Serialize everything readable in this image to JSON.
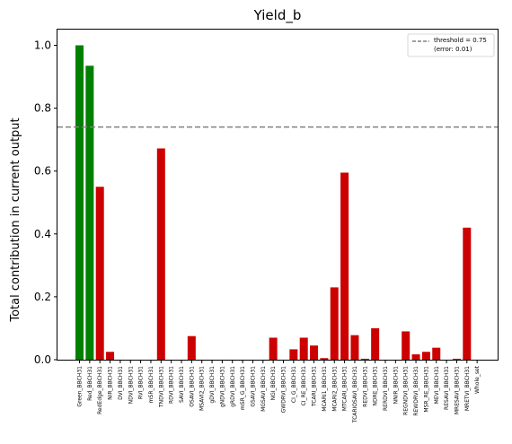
{
  "chart_data": {
    "type": "bar",
    "title": "Yield_b",
    "xlabel": "",
    "ylabel": "Total contribution in current output",
    "ylim": [
      0,
      1.05
    ],
    "yticks": [
      "0.0",
      "0.2",
      "0.4",
      "0.6",
      "0.8",
      "1.0"
    ],
    "threshold": {
      "value": 0.74,
      "legend_line1": "threshold = 0.75",
      "legend_line2": "(error: 0.01)",
      "color": "#808080"
    },
    "legend_placement": "top-right",
    "colors": {
      "above": "#008000",
      "below": "#cc0000"
    },
    "categories": [
      "Green_BBCH31",
      "Red_BBCH31",
      "RedEdge_BBCH31",
      "NIR_BBCH31",
      "DVI_BBCH31",
      "NDVI_BBCH31",
      "RVI_BBCH31",
      "mSR_BBCH31",
      "TNDVI_BBCH31",
      "RDVI_BBCH31",
      "SAVI_BBCH31",
      "OSAVI_BBCH31",
      "MSAVI2_BBCH31",
      "gDVI_BBCH31",
      "gNDVI_BBCH31",
      "gRDVI_BBCH31",
      "mSR_G_BBCH31",
      "GSAVI_BBCH31",
      "MGSAVI_BBCH31",
      "NGI_BBCH31",
      "GWDRVI_BBCH31",
      "CI_G_BBCH31",
      "CI_RE_BBCH31",
      "TCARI_BBCH31",
      "MCARI1_BBCH31",
      "MCARI2_BBCH31",
      "MTCARI_BBCH31",
      "TCARIOSAVI_BBCH31",
      "REDVI_BBCH31",
      "NDRE_BBCH31",
      "RERDVI_BBCH31",
      "NNIR_BBCH31",
      "REGNDVI_BBCH31",
      "REWDRVI_BBCH31",
      "MSR_RE_BBCH31",
      "MEVI_BBCH31",
      "RESAVI_BBCH31",
      "MRESAVI_BBCH31",
      "MRETVI_BBCH31",
      "Whole_set"
    ],
    "values": [
      1.0,
      0.935,
      0.55,
      0.025,
      0,
      0,
      0,
      0,
      0.672,
      0,
      0,
      0.075,
      0,
      0,
      0,
      0,
      0,
      0,
      0,
      0.07,
      0,
      0.033,
      0.07,
      0.045,
      0.005,
      0.23,
      0.595,
      0.078,
      0.003,
      0.1,
      0,
      0,
      0.09,
      0.017,
      0.025,
      0.038,
      0,
      0.003,
      0.42,
      0
    ]
  }
}
